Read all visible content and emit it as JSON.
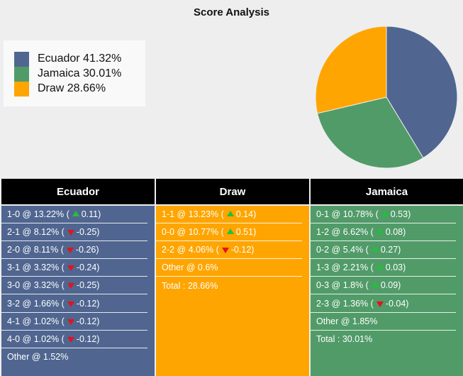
{
  "title": "Score Analysis",
  "colors": {
    "ecuador": "#506690",
    "jamaica": "#519b69",
    "draw": "#fea502"
  },
  "legend": [
    {
      "label": "Ecuador 41.32%",
      "color": "#506690"
    },
    {
      "label": "Jamaica 30.01%",
      "color": "#519b69"
    },
    {
      "label": "Draw 28.66%",
      "color": "#fea502"
    }
  ],
  "chart_data": {
    "type": "pie",
    "slices": [
      {
        "name": "Ecuador",
        "value": 41.32,
        "color": "#506690"
      },
      {
        "name": "Jamaica",
        "value": 30.01,
        "color": "#519b69"
      },
      {
        "name": "Draw",
        "value": 28.66,
        "color": "#fea502"
      }
    ]
  },
  "columns": {
    "ecuador": {
      "header": "Ecuador",
      "rows": [
        {
          "text": "1-0 @ 13.22% (",
          "dir": "up",
          "change": "0.11)"
        },
        {
          "text": "2-1 @ 8.12% (",
          "dir": "down",
          "change": "-0.25)"
        },
        {
          "text": "2-0 @ 8.11% (",
          "dir": "down",
          "change": "-0.26)"
        },
        {
          "text": "3-1 @ 3.32% (",
          "dir": "down",
          "change": "-0.24)"
        },
        {
          "text": "3-0 @ 3.32% (",
          "dir": "down",
          "change": "-0.25)"
        },
        {
          "text": "3-2 @ 1.66% (",
          "dir": "down",
          "change": "-0.12)"
        },
        {
          "text": "4-1 @ 1.02% (",
          "dir": "down",
          "change": "-0.12)"
        },
        {
          "text": "4-0 @ 1.02% (",
          "dir": "down",
          "change": "-0.12)"
        },
        {
          "text": "Other @ 1.52%",
          "dir": "",
          "change": ""
        }
      ]
    },
    "draw": {
      "header": "Draw",
      "rows": [
        {
          "text": "1-1 @ 13.23% (",
          "dir": "up",
          "change": "0.14)"
        },
        {
          "text": "0-0 @ 10.77% (",
          "dir": "up",
          "change": "0.51)"
        },
        {
          "text": "2-2 @ 4.06% (",
          "dir": "down",
          "change": "-0.12)"
        },
        {
          "text": "Other @ 0.6%",
          "dir": "",
          "change": ""
        },
        {
          "text": "Total : 28.66%",
          "dir": "",
          "change": ""
        }
      ]
    },
    "jamaica": {
      "header": "Jamaica",
      "rows": [
        {
          "text": "0-1 @ 10.78% (",
          "dir": "up",
          "change": "0.53)"
        },
        {
          "text": "1-2 @ 6.62% (",
          "dir": "up",
          "change": "0.08)"
        },
        {
          "text": "0-2 @ 5.4% (",
          "dir": "up",
          "change": "0.27)"
        },
        {
          "text": "1-3 @ 2.21% (",
          "dir": "up",
          "change": "0.03)"
        },
        {
          "text": "0-3 @ 1.8% (",
          "dir": "up",
          "change": "0.09)"
        },
        {
          "text": "2-3 @ 1.36% (",
          "dir": "down",
          "change": "-0.04)"
        },
        {
          "text": "Other @ 1.85%",
          "dir": "",
          "change": ""
        },
        {
          "text": "Total : 30.01%",
          "dir": "",
          "change": ""
        }
      ]
    }
  }
}
